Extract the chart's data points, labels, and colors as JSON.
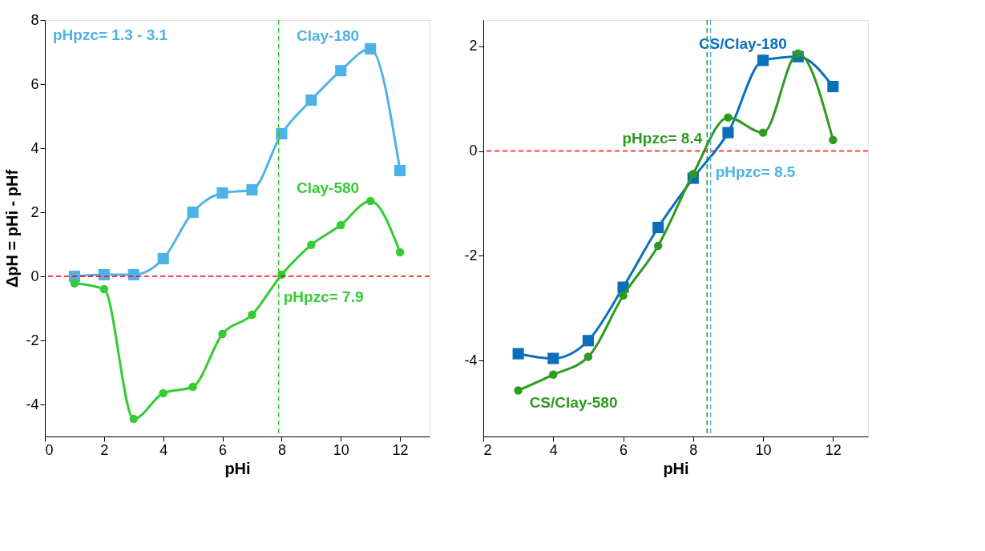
{
  "chart_data": [
    {
      "type": "line",
      "xlabel": "pHi",
      "ylabel": "ΔpH = pHi - pHf",
      "xlim": [
        0,
        13
      ],
      "xticks": [
        0,
        2,
        4,
        6,
        8,
        10,
        12
      ],
      "ylim": [
        -5,
        8
      ],
      "yticks": [
        -4,
        -2,
        0,
        2,
        4,
        6,
        8
      ],
      "grid": false,
      "legend": false,
      "x": [
        1,
        2,
        3,
        4,
        5,
        6,
        7,
        8,
        9,
        10,
        11,
        12
      ],
      "series": [
        {
          "name": "Clay-180",
          "color": "#4db3e6",
          "marker": "square",
          "values": [
            0.0,
            0.05,
            0.05,
            0.55,
            2.0,
            2.6,
            2.7,
            4.45,
            5.5,
            6.42,
            7.1,
            3.3
          ]
        },
        {
          "name": "Clay-580",
          "color": "#33cc33",
          "marker": "circle",
          "values": [
            -0.22,
            -0.4,
            -4.45,
            -3.65,
            -3.45,
            -1.8,
            -1.2,
            0.05,
            0.98,
            1.6,
            2.35,
            0.75
          ]
        }
      ],
      "ref_lines": [
        {
          "axis": "y",
          "value": 0,
          "color": "#ff0000",
          "line_style": "dashed"
        },
        {
          "axis": "x",
          "value": 7.9,
          "label": "pHpzc= 7.9",
          "color": "#33cc33",
          "line_style": "dashed"
        }
      ],
      "annotations": [
        "pHpzc= 1.3 - 3.1"
      ]
    },
    {
      "type": "line",
      "xlabel": "pHi",
      "xlim": [
        2,
        13
      ],
      "xticks": [
        2,
        4,
        6,
        8,
        10,
        12
      ],
      "ylim": [
        -5.45,
        2.5
      ],
      "yticks": [
        -4,
        -2,
        0,
        2
      ],
      "grid": false,
      "legend": false,
      "x": [
        3,
        4,
        5,
        6,
        7,
        8,
        9,
        10,
        11,
        12
      ],
      "series": [
        {
          "name": "CS/Clay-180",
          "color": "#0a6fba",
          "marker": "square",
          "values": [
            -3.87,
            -3.96,
            -3.62,
            -2.6,
            -1.46,
            -0.52,
            0.35,
            1.73,
            1.8,
            1.23
          ]
        },
        {
          "name": "CS/Clay-580",
          "color": "#2e9a1f",
          "marker": "circle",
          "values": [
            -4.57,
            -4.27,
            -3.93,
            -2.76,
            -1.81,
            -0.44,
            0.64,
            0.35,
            1.86,
            0.21
          ]
        }
      ],
      "ref_lines": [
        {
          "axis": "y",
          "value": 0,
          "color": "#ff0000",
          "line_style": "dashed"
        },
        {
          "axis": "x",
          "value": 8.5,
          "label": "pHpzc= 8.5",
          "color": "#4db3e6",
          "line_style": "dashed"
        },
        {
          "axis": "x",
          "value": 8.4,
          "label": "pHpzc= 8.4",
          "color": "#2e9a1f",
          "line_style": "dashed"
        }
      ]
    }
  ]
}
